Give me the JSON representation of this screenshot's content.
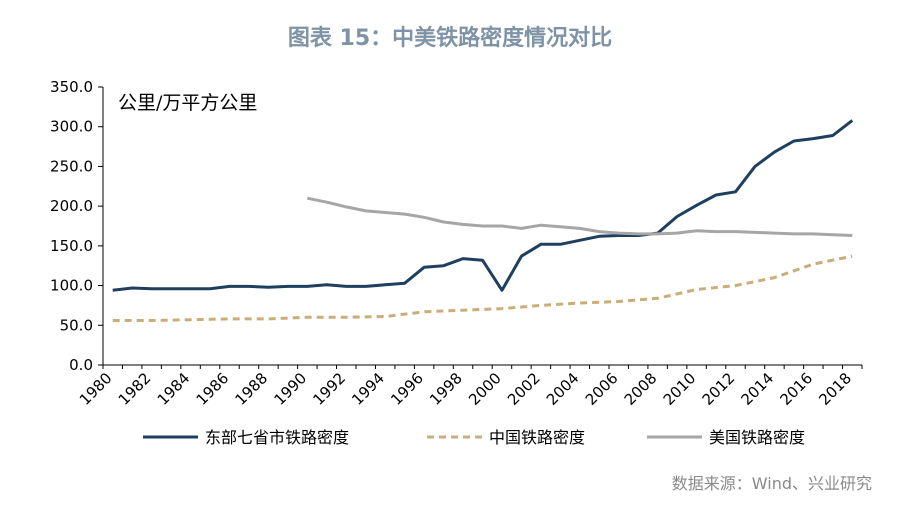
{
  "header": {
    "title": "图表 15：中美铁路密度情况对比"
  },
  "footer": {
    "source": "数据来源：Wind、兴业研究"
  },
  "chart_data": {
    "type": "line",
    "title": "图表 15：中美铁路密度情况对比",
    "unit_label": "公里/万平方公里",
    "ylim": [
      0,
      350
    ],
    "y_ticks": [
      "0.0",
      "50.0",
      "100.0",
      "150.0",
      "200.0",
      "250.0",
      "300.0",
      "350.0"
    ],
    "x_ticks": [
      "1980",
      "1982",
      "1984",
      "1986",
      "1988",
      "1990",
      "1992",
      "1994",
      "1996",
      "1998",
      "2000",
      "2002",
      "2004",
      "2006",
      "2008",
      "2010",
      "2012",
      "2014",
      "2016",
      "2018"
    ],
    "legend_position": "bottom",
    "grid": false,
    "series": [
      {
        "name": "东部七省市铁路密度",
        "color": "#1f3f5f",
        "style": "solid",
        "x": [
          1980,
          1981,
          1982,
          1983,
          1984,
          1985,
          1986,
          1987,
          1988,
          1989,
          1990,
          1991,
          1992,
          1993,
          1994,
          1995,
          1996,
          1997,
          1998,
          1999,
          2000,
          2001,
          2002,
          2003,
          2004,
          2005,
          2006,
          2007,
          2008,
          2009,
          2010,
          2011,
          2012,
          2013,
          2014,
          2015,
          2016,
          2017,
          2018
        ],
        "values": [
          94,
          97,
          96,
          96,
          96,
          96,
          99,
          99,
          98,
          99,
          99,
          101,
          99,
          99,
          101,
          103,
          123,
          125,
          134,
          132,
          94,
          137,
          152,
          152,
          157,
          162,
          163,
          163,
          166,
          187,
          201,
          214,
          218,
          250,
          268,
          282,
          285,
          289,
          308
        ]
      },
      {
        "name": "中国铁路密度",
        "color": "#c9ad7a",
        "style": "dashed",
        "x": [
          1980,
          1982,
          1984,
          1986,
          1988,
          1990,
          1992,
          1994,
          1996,
          1998,
          2000,
          2002,
          2004,
          2006,
          2008,
          2010,
          2012,
          2014,
          2016,
          2018
        ],
        "values": [
          56,
          56,
          57,
          58,
          58,
          60,
          60,
          61,
          67,
          69,
          71,
          75,
          78,
          80,
          84,
          95,
          100,
          110,
          127,
          137
        ]
      },
      {
        "name": "美国铁路密度",
        "color": "#a6a6a6",
        "style": "solid",
        "x": [
          1990,
          1991,
          1992,
          1993,
          1994,
          1995,
          1996,
          1997,
          1998,
          1999,
          2000,
          2001,
          2002,
          2003,
          2004,
          2005,
          2006,
          2007,
          2008,
          2009,
          2010,
          2011,
          2012,
          2013,
          2014,
          2015,
          2016,
          2017,
          2018
        ],
        "values": [
          210,
          205,
          199,
          194,
          192,
          190,
          186,
          180,
          177,
          175,
          175,
          172,
          176,
          174,
          172,
          168,
          166,
          165,
          165,
          166,
          169,
          168,
          168,
          167,
          166,
          165,
          165,
          164,
          163
        ]
      }
    ]
  }
}
